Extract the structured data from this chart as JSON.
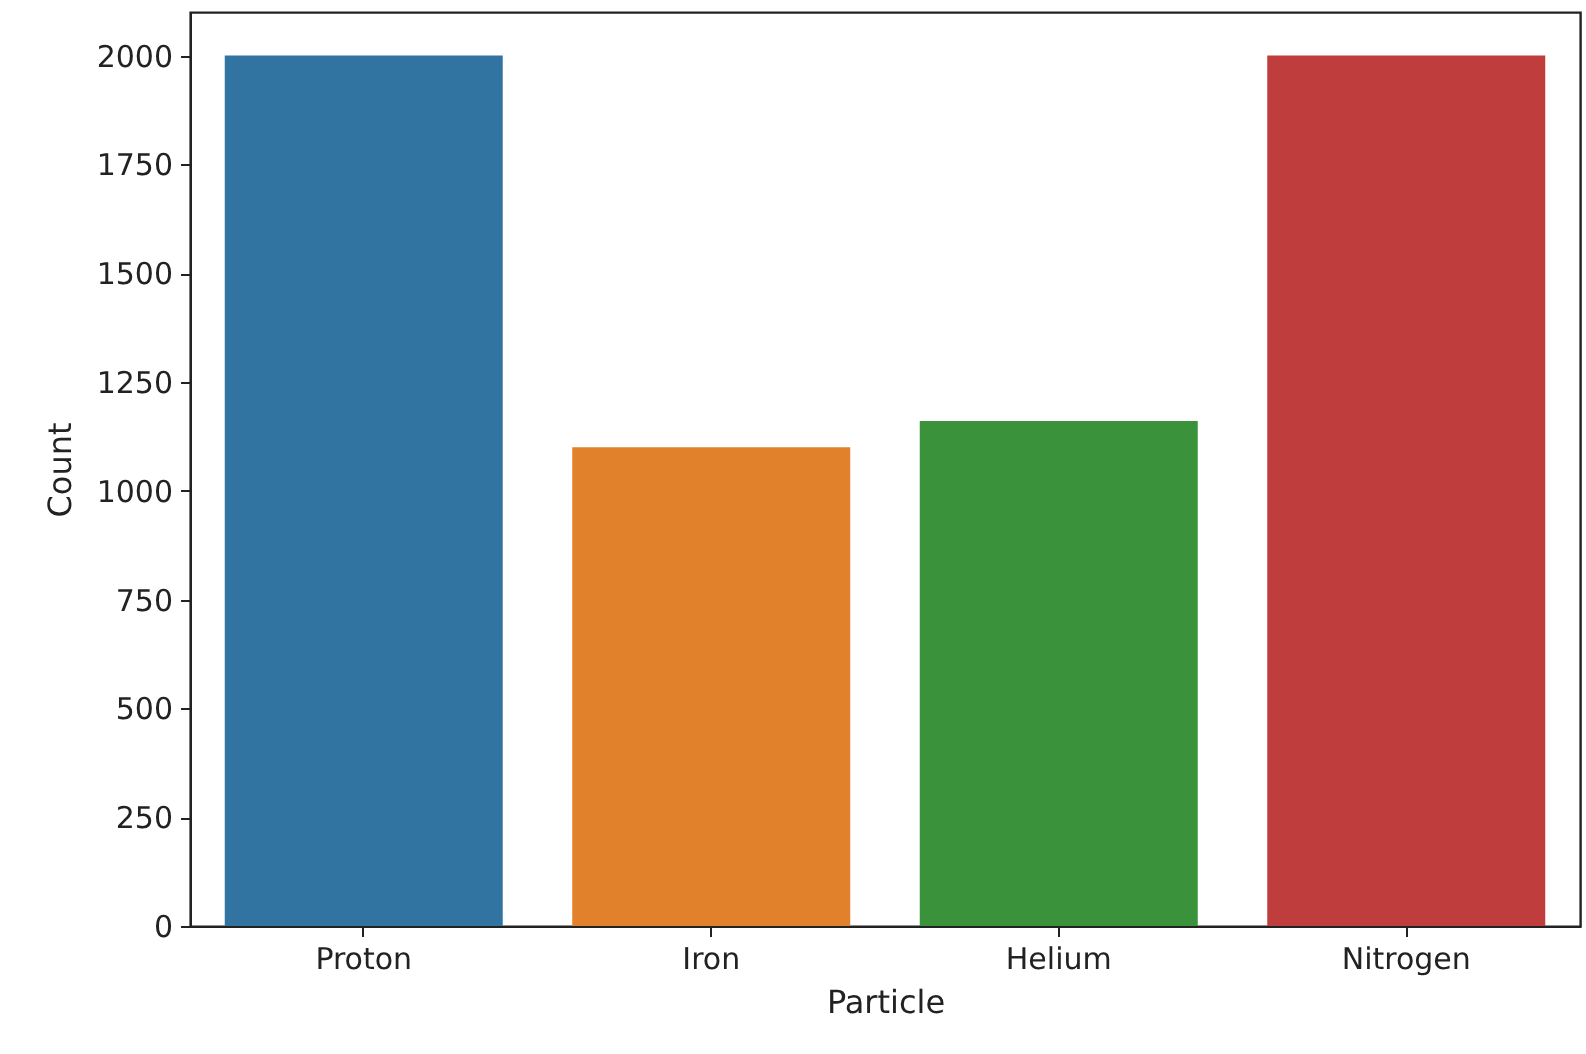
{
  "chart_data": {
    "type": "bar",
    "xlabel": "Particle",
    "ylabel": "Count",
    "categories": [
      "Proton",
      "Iron",
      "Helium",
      "Nitrogen"
    ],
    "values": [
      2000,
      1100,
      1160,
      2000
    ],
    "colors": [
      "#3274a1",
      "#e1812c",
      "#3a923a",
      "#c03d3e"
    ],
    "ylim": [
      0,
      2100
    ],
    "yticks": [
      0,
      250,
      500,
      750,
      1000,
      1250,
      1500,
      1750,
      2000
    ],
    "grid": false
  }
}
